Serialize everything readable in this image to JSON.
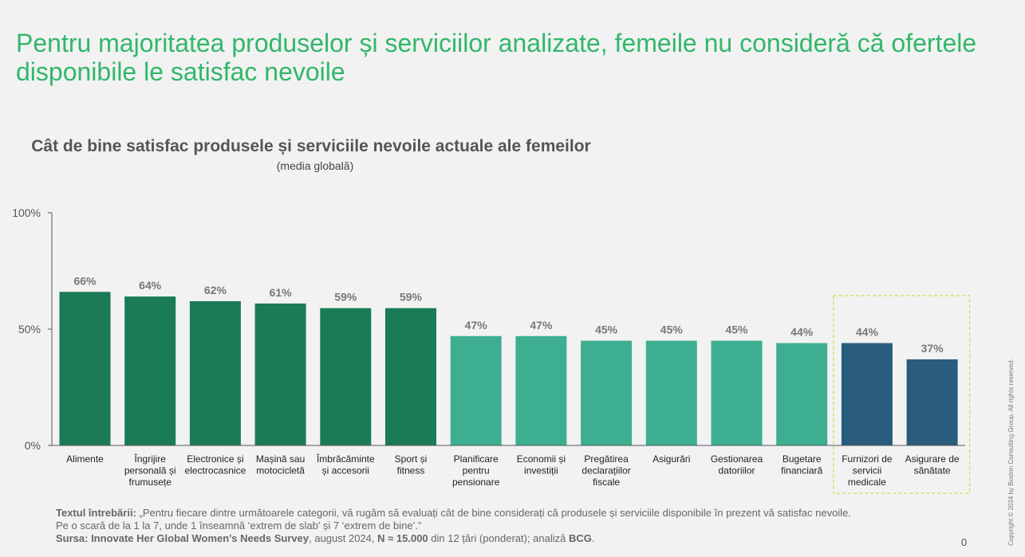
{
  "headline": "Pentru majoritatea produselor și serviciilor analizate, femeile nu consideră că ofertele disponibile le satisfac nevoile",
  "chart_data": {
    "type": "bar",
    "title": "Cât de bine satisfac produsele și serviciile nevoile actuale ale femeilor",
    "subtitle": "(media globală)",
    "xlabel": "",
    "ylabel": "",
    "ylim": [
      0,
      100
    ],
    "yticks": [
      "0%",
      "50%",
      "100%"
    ],
    "ytick_values": [
      0,
      50,
      100
    ],
    "categories": [
      [
        "Alimente"
      ],
      [
        "Îngrijire",
        "personală și",
        "frumusețe"
      ],
      [
        "Electronice și",
        "electrocasnice"
      ],
      [
        "Mașină sau",
        "motocicletă"
      ],
      [
        "Îmbrăcăminte",
        "și accesorii"
      ],
      [
        "Sport și",
        "fitness"
      ],
      [
        "Planificare",
        "pentru",
        "pensionare"
      ],
      [
        "Economii și",
        "investiții"
      ],
      [
        "Pregătirea",
        "declarațiilor",
        "fiscale"
      ],
      [
        "Asigurări"
      ],
      [
        "Gestionarea",
        "datoriilor"
      ],
      [
        "Bugetare",
        "financiară"
      ],
      [
        "Furnizori de",
        "servicii",
        "medicale"
      ],
      [
        "Asigurare de",
        "sănătate"
      ]
    ],
    "values": [
      66,
      64,
      62,
      61,
      59,
      59,
      47,
      47,
      45,
      45,
      45,
      44,
      44,
      37
    ],
    "value_labels": [
      "66%",
      "64%",
      "62%",
      "61%",
      "59%",
      "59%",
      "47%",
      "47%",
      "45%",
      "45%",
      "45%",
      "44%",
      "44%",
      "37%"
    ],
    "groups": [
      "high",
      "high",
      "high",
      "high",
      "high",
      "high",
      "mid",
      "mid",
      "mid",
      "mid",
      "mid",
      "mid",
      "health",
      "health"
    ],
    "highlighted_group": "health",
    "colors": {
      "high": "#1a7b55",
      "mid": "#3daf90",
      "health": "#295c7d",
      "axis": "#555555",
      "highlight_border": "#c8df4a"
    }
  },
  "footnote": {
    "question_label": "Textul întrebării:",
    "question_text": " „Pentru fiecare dintre următoarele categorii, vă rugăm să evaluați cât de bine considerați că produsele și serviciile disponibile în prezent vă satisfac nevoile. Pe o scară de la 1 la 7, unde 1 înseamnă ‘extrem de slab’ și 7 ‘extrem de bine’.”",
    "source_label": "Sursa: Innovate Her Global Women's Needs Survey",
    "source_date": ", august 2024, ",
    "sample": "N ≈ 15.000",
    "source_rest": " din 12 țări (ponderat); analiză ",
    "source_brand": "BCG",
    "source_end": "."
  },
  "page_number": "0",
  "copyright": "Copyright © 2024 by Boston Consulting Group. All rights reserved."
}
